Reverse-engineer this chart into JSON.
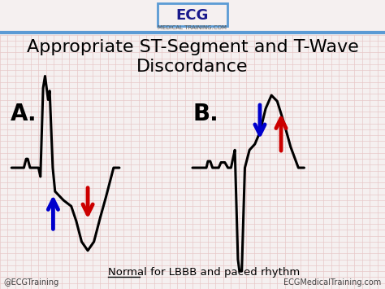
{
  "title_line1": "Appropriate ST-Segment and T-Wave",
  "title_line2": "Discordance",
  "title_fontsize": 16,
  "bg_color": "#f5f0f0",
  "grid_color": "#e8c8c8",
  "label_A": "A.",
  "label_B": "B.",
  "bottom_text_normal": "Normal",
  "bottom_text_rest": " for LBBB and paced rhythm",
  "footer_left": "@ECGTraining",
  "footer_right": "ECGMedicalTraining.com",
  "header_color": "#5b9bd5",
  "arrow_blue": "#0000cc",
  "arrow_red": "#cc0000",
  "ecg_color": "#000000",
  "ecg_linewidth": 2.2
}
